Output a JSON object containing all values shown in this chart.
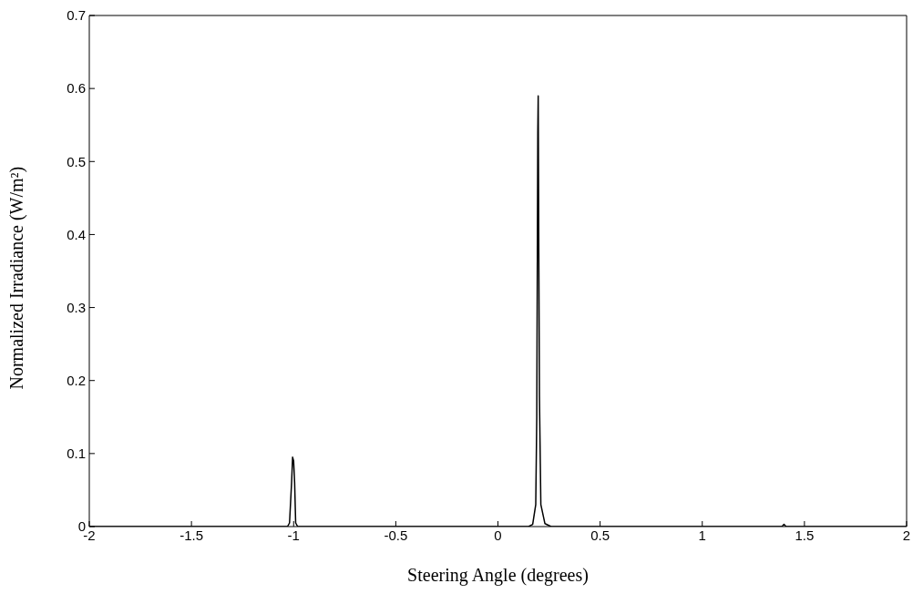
{
  "chart_data": {
    "type": "line",
    "xlabel": "Steering Angle (degrees)",
    "ylabel": "Normalized Irradiance (W/m²)",
    "x": [
      -2,
      -1.03,
      -1.02,
      -1.01,
      -1.005,
      -1.0,
      -0.995,
      -0.99,
      -0.98,
      0.15,
      0.17,
      0.185,
      0.19,
      0.195,
      0.197,
      0.2,
      0.203,
      0.21,
      0.23,
      0.26,
      1.39,
      1.4,
      1.41,
      2
    ],
    "series": [
      {
        "color": "#000000",
        "values": [
          0,
          0,
          0.005,
          0.06,
          0.095,
          0.09,
          0.06,
          0.005,
          0,
          0,
          0.003,
          0.03,
          0.15,
          0.54,
          0.59,
          0.375,
          0.18,
          0.03,
          0.004,
          0,
          0,
          0.003,
          0,
          0
        ]
      }
    ],
    "xlim": [
      -2,
      2
    ],
    "xticks": [
      -2,
      -1.5,
      -1,
      -0.5,
      0,
      0.5,
      1,
      1.5,
      2
    ],
    "ylim": [
      0,
      0.7
    ],
    "yticks": [
      0,
      0.1,
      0.2,
      0.3,
      0.4,
      0.5,
      0.6,
      0.7
    ],
    "grid": false,
    "legend": false,
    "marker": "none",
    "line_style": "solid"
  }
}
